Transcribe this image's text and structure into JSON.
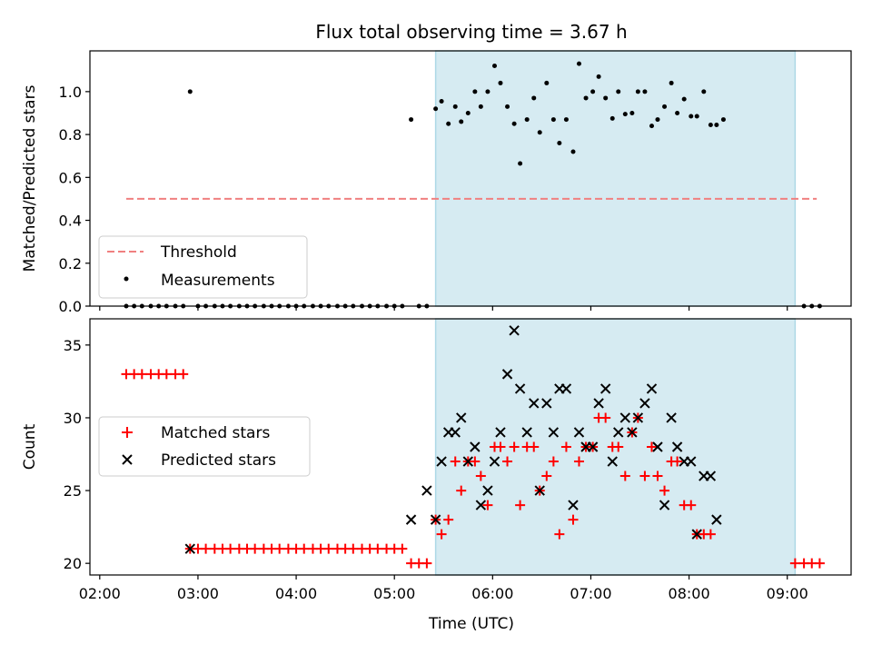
{
  "title": "Flux total observing time = 3.67 h",
  "x_tick_labels": [
    "02:00",
    "03:00",
    "04:00",
    "05:00",
    "06:00",
    "07:00",
    "08:00",
    "09:00"
  ],
  "xlabel": "Time (UTC)",
  "colors": {
    "shade": "#add8e6",
    "threshold": "#f08080",
    "measurement": "#000000",
    "matched": "#ff0000",
    "predicted": "#000000"
  },
  "chart_data": [
    {
      "type": "scatter",
      "ylabel": "Matched/Predicted stars",
      "xlim": [
        1.9,
        9.65
      ],
      "ylim": [
        0,
        1.19
      ],
      "y_ticks": [
        "0.0",
        "0.2",
        "0.4",
        "0.6",
        "0.8",
        "1.0"
      ],
      "shaded_region": {
        "x_start": 5.42,
        "x_end": 9.08
      },
      "threshold": {
        "name": "Threshold",
        "value": 0.5,
        "x_start": 2.27,
        "x_end": 9.3
      },
      "legend": {
        "position": "lower-left",
        "entries": [
          "Threshold",
          "Measurements"
        ]
      },
      "series": [
        {
          "name": "Measurements",
          "marker": "dot",
          "points": [
            [
              2.27,
              0
            ],
            [
              2.35,
              0
            ],
            [
              2.43,
              0
            ],
            [
              2.52,
              0
            ],
            [
              2.6,
              0
            ],
            [
              2.68,
              0
            ],
            [
              2.77,
              0
            ],
            [
              2.85,
              0
            ],
            [
              2.92,
              1.0
            ],
            [
              3.0,
              0
            ],
            [
              3.08,
              0
            ],
            [
              3.17,
              0
            ],
            [
              3.25,
              0
            ],
            [
              3.33,
              0
            ],
            [
              3.42,
              0
            ],
            [
              3.5,
              0
            ],
            [
              3.58,
              0
            ],
            [
              3.67,
              0
            ],
            [
              3.75,
              0
            ],
            [
              3.83,
              0
            ],
            [
              3.92,
              0
            ],
            [
              4.0,
              0
            ],
            [
              4.08,
              0
            ],
            [
              4.17,
              0
            ],
            [
              4.25,
              0
            ],
            [
              4.33,
              0
            ],
            [
              4.42,
              0
            ],
            [
              4.5,
              0
            ],
            [
              4.58,
              0
            ],
            [
              4.67,
              0
            ],
            [
              4.75,
              0
            ],
            [
              4.83,
              0
            ],
            [
              4.92,
              0
            ],
            [
              5.0,
              0
            ],
            [
              5.08,
              0
            ],
            [
              5.17,
              0.87
            ],
            [
              5.25,
              0
            ],
            [
              5.33,
              0
            ],
            [
              5.42,
              0.92
            ],
            [
              5.48,
              0.955
            ],
            [
              5.55,
              0.85
            ],
            [
              5.62,
              0.93
            ],
            [
              5.68,
              0.86
            ],
            [
              5.75,
              0.9
            ],
            [
              5.82,
              1.0
            ],
            [
              5.88,
              0.93
            ],
            [
              5.95,
              1.0
            ],
            [
              6.02,
              1.12
            ],
            [
              6.08,
              1.04
            ],
            [
              6.15,
              0.93
            ],
            [
              6.22,
              0.85
            ],
            [
              6.28,
              0.665
            ],
            [
              6.35,
              0.87
            ],
            [
              6.42,
              0.97
            ],
            [
              6.48,
              0.81
            ],
            [
              6.55,
              1.04
            ],
            [
              6.62,
              0.87
            ],
            [
              6.68,
              0.76
            ],
            [
              6.75,
              0.87
            ],
            [
              6.82,
              0.72
            ],
            [
              6.88,
              1.13
            ],
            [
              6.95,
              0.97
            ],
            [
              7.02,
              1.0
            ],
            [
              7.08,
              1.07
            ],
            [
              7.15,
              0.97
            ],
            [
              7.22,
              0.875
            ],
            [
              7.28,
              1.0
            ],
            [
              7.35,
              0.895
            ],
            [
              7.42,
              0.9
            ],
            [
              7.48,
              1.0
            ],
            [
              7.55,
              1.0
            ],
            [
              7.62,
              0.84
            ],
            [
              7.68,
              0.87
            ],
            [
              7.75,
              0.93
            ],
            [
              7.82,
              1.04
            ],
            [
              7.88,
              0.9
            ],
            [
              7.95,
              0.965
            ],
            [
              8.02,
              0.885
            ],
            [
              8.08,
              0.885
            ],
            [
              8.15,
              1.0
            ],
            [
              8.22,
              0.845
            ],
            [
              8.28,
              0.845
            ],
            [
              8.35,
              0.87
            ],
            [
              9.17,
              0
            ],
            [
              9.25,
              0
            ],
            [
              9.33,
              0
            ]
          ]
        }
      ]
    },
    {
      "type": "scatter",
      "ylabel": "Count",
      "xlim": [
        1.9,
        9.65
      ],
      "ylim": [
        19.2,
        36.8
      ],
      "y_ticks": [
        "20",
        "25",
        "30",
        "35"
      ],
      "shaded_region": {
        "x_start": 5.42,
        "x_end": 9.08
      },
      "legend": {
        "position": "center-left",
        "entries": [
          "Matched stars",
          "Predicted stars"
        ]
      },
      "series": [
        {
          "name": "Matched stars",
          "marker": "plus",
          "points": [
            [
              2.27,
              33
            ],
            [
              2.35,
              33
            ],
            [
              2.43,
              33
            ],
            [
              2.52,
              33
            ],
            [
              2.6,
              33
            ],
            [
              2.68,
              33
            ],
            [
              2.77,
              33
            ],
            [
              2.85,
              33
            ],
            [
              2.92,
              21
            ],
            [
              3.0,
              21
            ],
            [
              3.08,
              21
            ],
            [
              3.17,
              21
            ],
            [
              3.25,
              21
            ],
            [
              3.33,
              21
            ],
            [
              3.42,
              21
            ],
            [
              3.5,
              21
            ],
            [
              3.58,
              21
            ],
            [
              3.67,
              21
            ],
            [
              3.75,
              21
            ],
            [
              3.83,
              21
            ],
            [
              3.92,
              21
            ],
            [
              4.0,
              21
            ],
            [
              4.08,
              21
            ],
            [
              4.17,
              21
            ],
            [
              4.25,
              21
            ],
            [
              4.33,
              21
            ],
            [
              4.42,
              21
            ],
            [
              4.5,
              21
            ],
            [
              4.58,
              21
            ],
            [
              4.67,
              21
            ],
            [
              4.75,
              21
            ],
            [
              4.83,
              21
            ],
            [
              4.92,
              21
            ],
            [
              5.0,
              21
            ],
            [
              5.08,
              21
            ],
            [
              5.17,
              20
            ],
            [
              5.25,
              20
            ],
            [
              5.33,
              20
            ],
            [
              5.42,
              23
            ],
            [
              5.48,
              22
            ],
            [
              5.55,
              23
            ],
            [
              5.62,
              27
            ],
            [
              5.68,
              25
            ],
            [
              5.75,
              27
            ],
            [
              5.82,
              27
            ],
            [
              5.88,
              26
            ],
            [
              5.95,
              24
            ],
            [
              6.02,
              28
            ],
            [
              6.08,
              28
            ],
            [
              6.15,
              27
            ],
            [
              6.22,
              28
            ],
            [
              6.28,
              24
            ],
            [
              6.35,
              28
            ],
            [
              6.42,
              28
            ],
            [
              6.48,
              25
            ],
            [
              6.55,
              26
            ],
            [
              6.62,
              27
            ],
            [
              6.68,
              22
            ],
            [
              6.75,
              28
            ],
            [
              6.82,
              23
            ],
            [
              6.88,
              27
            ],
            [
              6.95,
              28
            ],
            [
              7.02,
              28
            ],
            [
              7.08,
              30
            ],
            [
              7.15,
              30
            ],
            [
              7.22,
              28
            ],
            [
              7.28,
              28
            ],
            [
              7.35,
              26
            ],
            [
              7.42,
              29
            ],
            [
              7.48,
              30
            ],
            [
              7.55,
              26
            ],
            [
              7.62,
              28
            ],
            [
              7.68,
              26
            ],
            [
              7.75,
              25
            ],
            [
              7.82,
              27
            ],
            [
              7.88,
              27
            ],
            [
              7.95,
              24
            ],
            [
              8.02,
              24
            ],
            [
              8.08,
              22
            ],
            [
              8.15,
              22
            ],
            [
              8.22,
              22
            ],
            [
              9.08,
              20
            ],
            [
              9.17,
              20
            ],
            [
              9.25,
              20
            ],
            [
              9.33,
              20
            ]
          ]
        },
        {
          "name": "Predicted stars",
          "marker": "x",
          "points": [
            [
              2.92,
              21
            ],
            [
              5.17,
              23
            ],
            [
              5.33,
              25
            ],
            [
              5.42,
              23
            ],
            [
              5.48,
              27
            ],
            [
              5.55,
              29
            ],
            [
              5.62,
              29
            ],
            [
              5.68,
              30
            ],
            [
              5.75,
              27
            ],
            [
              5.82,
              28
            ],
            [
              5.88,
              24
            ],
            [
              5.95,
              25
            ],
            [
              6.02,
              27
            ],
            [
              6.08,
              29
            ],
            [
              6.15,
              33
            ],
            [
              6.22,
              36
            ],
            [
              6.28,
              32
            ],
            [
              6.35,
              29
            ],
            [
              6.42,
              31
            ],
            [
              6.48,
              25
            ],
            [
              6.55,
              31
            ],
            [
              6.62,
              29
            ],
            [
              6.68,
              32
            ],
            [
              6.75,
              32
            ],
            [
              6.82,
              24
            ],
            [
              6.88,
              29
            ],
            [
              6.95,
              28
            ],
            [
              7.02,
              28
            ],
            [
              7.08,
              31
            ],
            [
              7.15,
              32
            ],
            [
              7.22,
              27
            ],
            [
              7.28,
              29
            ],
            [
              7.35,
              30
            ],
            [
              7.42,
              29
            ],
            [
              7.48,
              30
            ],
            [
              7.55,
              31
            ],
            [
              7.62,
              32
            ],
            [
              7.68,
              28
            ],
            [
              7.75,
              24
            ],
            [
              7.82,
              30
            ],
            [
              7.88,
              28
            ],
            [
              7.95,
              27
            ],
            [
              8.02,
              27
            ],
            [
              8.08,
              22
            ],
            [
              8.15,
              26
            ],
            [
              8.22,
              26
            ],
            [
              8.28,
              23
            ]
          ]
        }
      ]
    }
  ]
}
